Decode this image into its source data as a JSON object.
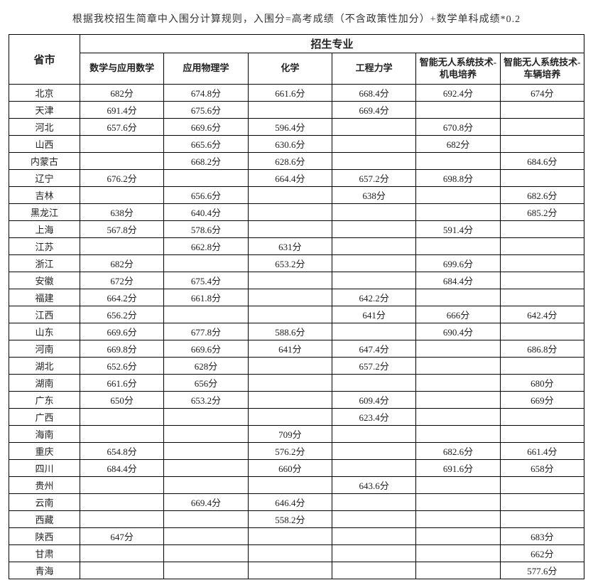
{
  "note": "根据我校招生简章中入围分计算规则，入围分=高考成绩（不含政策性加分）+数学单科成绩*0.2",
  "headers": {
    "province": "省市",
    "majors_group": "招生专业",
    "majors": [
      "数学与应用数学",
      "应用物理学",
      "化学",
      "工程力学",
      "智能无人系统技术-机电培养",
      "智能无人系统技术-车辆培养"
    ]
  },
  "rows": [
    {
      "p": "北京",
      "c": [
        "682分",
        "674.8分",
        "661.6分",
        "668.4分",
        "692.4分",
        "674分"
      ]
    },
    {
      "p": "天津",
      "c": [
        "691.4分",
        "675.6分",
        "",
        "669.4分",
        "",
        ""
      ]
    },
    {
      "p": "河北",
      "c": [
        "657.6分",
        "669.6分",
        "596.4分",
        "",
        "670.8分",
        ""
      ]
    },
    {
      "p": "山西",
      "c": [
        "",
        "665.6分",
        "630.6分",
        "",
        "682分",
        ""
      ]
    },
    {
      "p": "内蒙古",
      "c": [
        "",
        "668.2分",
        "628.6分",
        "",
        "",
        "684.6分"
      ]
    },
    {
      "p": "辽宁",
      "c": [
        "676.2分",
        "",
        "664.4分",
        "657.2分",
        "698.8分",
        ""
      ]
    },
    {
      "p": "吉林",
      "c": [
        "",
        "656.6分",
        "",
        "638分",
        "",
        "682.6分"
      ]
    },
    {
      "p": "黑龙江",
      "c": [
        "638分",
        "640.4分",
        "",
        "",
        "",
        "685.2分"
      ]
    },
    {
      "p": "上海",
      "c": [
        "567.8分",
        "578.6分",
        "",
        "",
        "591.4分",
        ""
      ]
    },
    {
      "p": "江苏",
      "c": [
        "",
        "662.8分",
        "631分",
        "",
        "",
        ""
      ]
    },
    {
      "p": "浙江",
      "c": [
        "682分",
        "",
        "653.2分",
        "",
        "699.6分",
        ""
      ]
    },
    {
      "p": "安徽",
      "c": [
        "672分",
        "675.4分",
        "",
        "",
        "684.4分",
        ""
      ]
    },
    {
      "p": "福建",
      "c": [
        "664.2分",
        "661.8分",
        "",
        "642.2分",
        "",
        ""
      ]
    },
    {
      "p": "江西",
      "c": [
        "656.2分",
        "",
        "",
        "641分",
        "666分",
        "642.4分"
      ]
    },
    {
      "p": "山东",
      "c": [
        "669.6分",
        "677.8分",
        "588.6分",
        "",
        "690.4分",
        ""
      ]
    },
    {
      "p": "河南",
      "c": [
        "669.8分",
        "669.6分",
        "641分",
        "647.4分",
        "",
        "686.8分"
      ]
    },
    {
      "p": "湖北",
      "c": [
        "652.6分",
        "628分",
        "",
        "657.2分",
        "",
        ""
      ]
    },
    {
      "p": "湖南",
      "c": [
        "661.6分",
        "656分",
        "",
        "",
        "",
        "680分"
      ]
    },
    {
      "p": "广东",
      "c": [
        "650分",
        "653.2分",
        "",
        "609.4分",
        "",
        "669分"
      ]
    },
    {
      "p": "广西",
      "c": [
        "",
        "",
        "",
        "623.4分",
        "",
        ""
      ]
    },
    {
      "p": "海南",
      "c": [
        "",
        "",
        "709分",
        "",
        "",
        ""
      ]
    },
    {
      "p": "重庆",
      "c": [
        "654.8分",
        "",
        "576.2分",
        "",
        "682.6分",
        "661.4分"
      ]
    },
    {
      "p": "四川",
      "c": [
        "684.4分",
        "",
        "660分",
        "",
        "691.6分",
        "658分"
      ]
    },
    {
      "p": "贵州",
      "c": [
        "",
        "",
        "",
        "643.6分",
        "",
        ""
      ]
    },
    {
      "p": "云南",
      "c": [
        "",
        "669.4分",
        "646.4分",
        "",
        "",
        ""
      ]
    },
    {
      "p": "西藏",
      "c": [
        "",
        "",
        "558.2分",
        "",
        "",
        ""
      ]
    },
    {
      "p": "陕西",
      "c": [
        "647分",
        "",
        "",
        "",
        "",
        "683分"
      ]
    },
    {
      "p": "甘肃",
      "c": [
        "",
        "",
        "",
        "",
        "",
        "662分"
      ]
    },
    {
      "p": "青海",
      "c": [
        "",
        "",
        "",
        "",
        "",
        "577.6分"
      ]
    }
  ]
}
